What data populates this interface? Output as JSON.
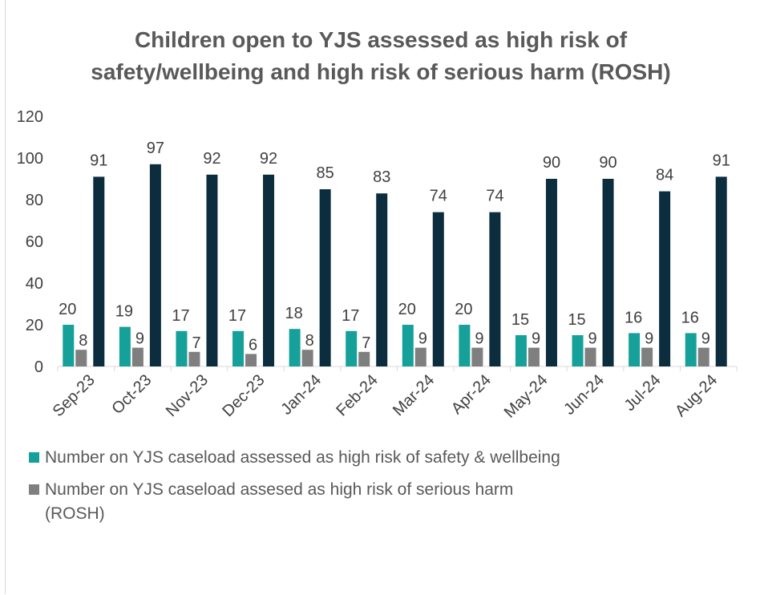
{
  "chart_data": {
    "type": "bar",
    "title": "Children open to YJS assessed as high risk of safety/wellbeing and high risk of serious harm (ROSH)",
    "categories": [
      "Sep-23",
      "Oct-23",
      "Nov-23",
      "Dec-23",
      "Jan-24",
      "Feb-24",
      "Mar-24",
      "Apr-24",
      "May-24",
      "Jun-24",
      "Jul-24",
      "Aug-24"
    ],
    "series": [
      {
        "name": "Number on YJS caseload assessed  as high risk of safety & wellbeing",
        "color": "#15a09a",
        "values": [
          20,
          19,
          17,
          17,
          18,
          17,
          20,
          20,
          15,
          15,
          16,
          16
        ]
      },
      {
        "name": "Number on YJS caseload assesed as high risk of serious harm (ROSH)",
        "color": "#7f7f7f",
        "values": [
          8,
          9,
          7,
          6,
          8,
          7,
          9,
          9,
          9,
          9,
          9,
          9
        ]
      },
      {
        "name": "",
        "color": "#0c2d3e",
        "values": [
          91,
          97,
          92,
          92,
          85,
          83,
          74,
          74,
          90,
          90,
          84,
          91
        ]
      }
    ],
    "ylim": [
      0,
      120
    ],
    "yticks": [
      0,
      20,
      40,
      60,
      80,
      100,
      120
    ],
    "grid": false,
    "legend_position": "bottom-left"
  }
}
